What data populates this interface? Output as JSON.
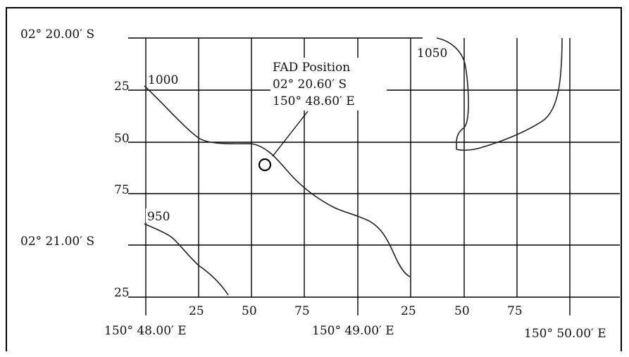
{
  "latitude_labels": {
    "lat_2020": "02° 20.00′ S",
    "lat_25a": "25",
    "lat_50": "50",
    "lat_75": "75",
    "lat_2100": "02° 21.00′ S",
    "lat_25b": "25"
  },
  "longitude_ticks": {
    "t1": "25",
    "t2": "50",
    "t3": "75",
    "t4": "25",
    "t5": "50",
    "t6": "75"
  },
  "longitude_labels": {
    "lon_4800": "150° 48.00′ E",
    "lon_4900": "150° 49.00′ E",
    "lon_5000": "150° 50.00′ E"
  },
  "contours": {
    "c1000": "1000",
    "c950": "950",
    "c1050": "1050"
  },
  "fad": {
    "title": "FAD Position",
    "lat": "02° 20.60′ S",
    "lon": "150° 48.60′ E"
  }
}
